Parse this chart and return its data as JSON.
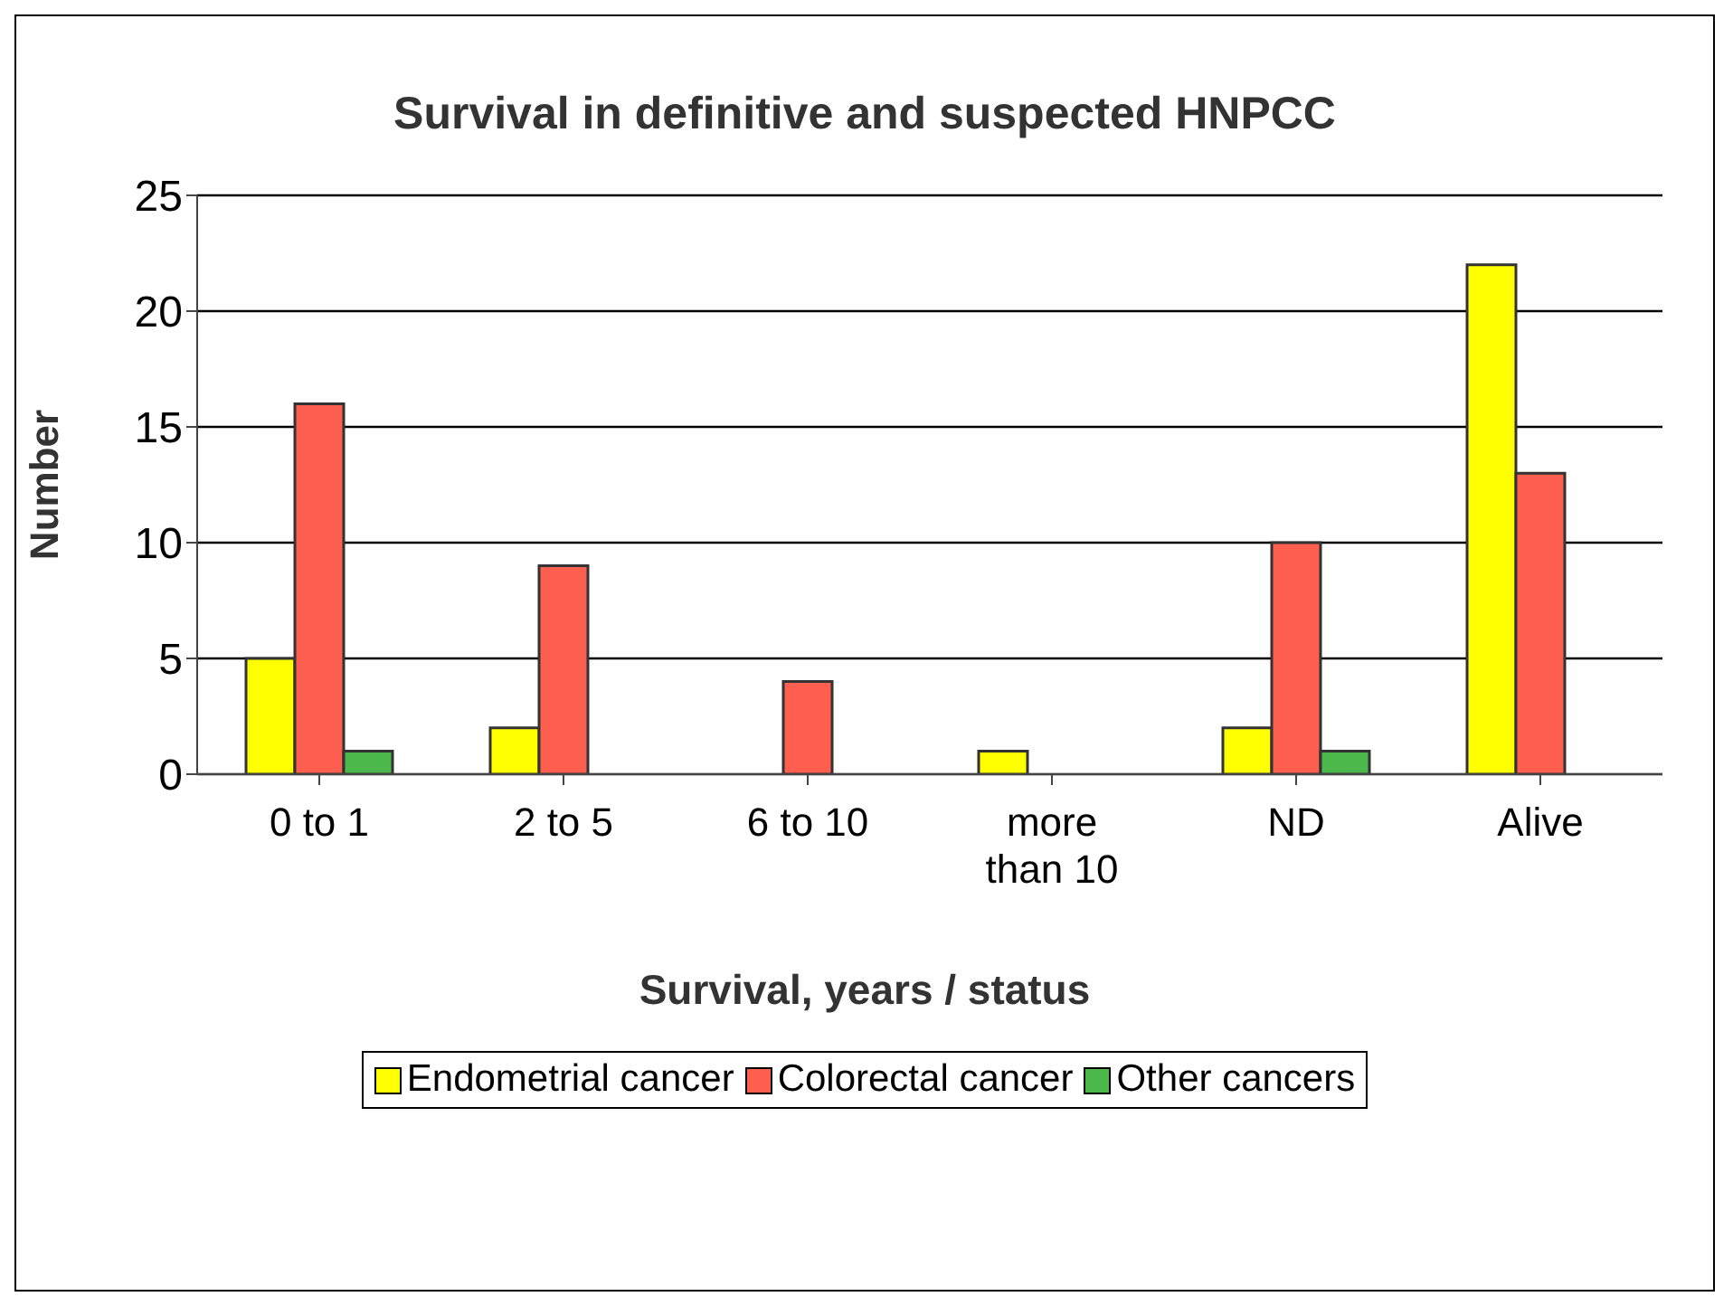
{
  "chart_data": {
    "type": "bar",
    "title": "Survival in definitive and suspected HNPCC",
    "xlabel": "Survival, years / status",
    "ylabel": "Number",
    "categories": [
      "0 to 1",
      "2 to 5",
      "6 to 10",
      "more than 10",
      "ND",
      "Alive"
    ],
    "series": [
      {
        "name": "Endometrial cancer",
        "color": "#ffff00",
        "values": [
          5,
          2,
          0,
          1,
          2,
          22
        ]
      },
      {
        "name": "Colorectal cancer",
        "color": "#ff5f4f",
        "values": [
          16,
          9,
          4,
          0,
          10,
          13
        ]
      },
      {
        "name": "Other cancers",
        "color": "#4cb84c",
        "values": [
          1,
          0,
          0,
          0,
          1,
          0
        ]
      }
    ],
    "ylim": [
      0,
      25
    ],
    "yticks": [
      0,
      5,
      10,
      15,
      20,
      25
    ],
    "grid": "y",
    "legend": "bottom"
  }
}
